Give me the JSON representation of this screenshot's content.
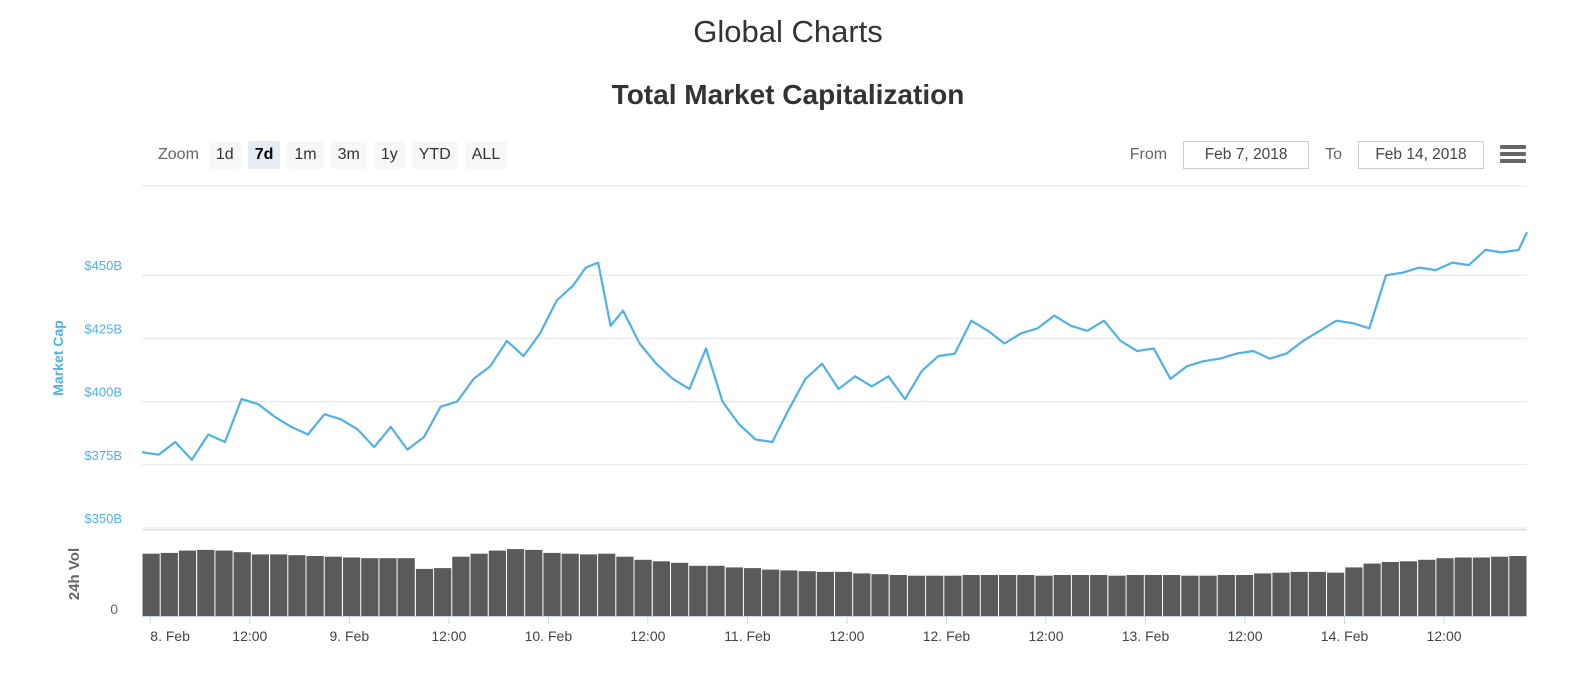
{
  "page": {
    "title": "Global Charts",
    "chart_title": "Total Market Capitalization"
  },
  "zoom": {
    "label": "Zoom",
    "options": [
      "1d",
      "7d",
      "1m",
      "3m",
      "1y",
      "YTD",
      "ALL"
    ],
    "selected": "7d"
  },
  "range": {
    "from_label": "From",
    "from_value": "Feb 7, 2018",
    "to_label": "To",
    "to_value": "Feb 14, 2018"
  },
  "menu_icon": "hamburger-menu-icon",
  "colors": {
    "market_cap_line": "#4fb1e6",
    "volume_bars": "#5a5a5a",
    "axis_label": "#4fb1e6",
    "volume_label": "#666666"
  },
  "chart_data": {
    "type": "line",
    "market_cap": {
      "ylabel": "Market Cap",
      "ylim": [
        350,
        475
      ],
      "yticks": [
        "$350B",
        "$375B",
        "$400B",
        "$425B",
        "$450B"
      ],
      "ytick_values": [
        350,
        375,
        400,
        425,
        450
      ],
      "x_start": "2018-02-07T23:00",
      "x_end": "2018-02-14T22:00",
      "x": [
        "2018-02-07T23:00",
        "2018-02-08T01:00",
        "2018-02-08T03:00",
        "2018-02-08T05:00",
        "2018-02-08T07:00",
        "2018-02-08T09:00",
        "2018-02-08T11:00",
        "2018-02-08T13:00",
        "2018-02-08T15:00",
        "2018-02-08T17:00",
        "2018-02-08T19:00",
        "2018-02-08T21:00",
        "2018-02-08T23:00",
        "2018-02-09T01:00",
        "2018-02-09T03:00",
        "2018-02-09T05:00",
        "2018-02-09T07:00",
        "2018-02-09T09:00",
        "2018-02-09T11:00",
        "2018-02-09T13:00",
        "2018-02-09T15:00",
        "2018-02-09T17:00",
        "2018-02-09T19:00",
        "2018-02-09T21:00",
        "2018-02-09T23:00",
        "2018-02-10T01:00",
        "2018-02-10T03:00",
        "2018-02-10T04:30",
        "2018-02-10T06:00",
        "2018-02-10T07:30",
        "2018-02-10T09:00",
        "2018-02-10T11:00",
        "2018-02-10T13:00",
        "2018-02-10T15:00",
        "2018-02-10T17:00",
        "2018-02-10T19:00",
        "2018-02-10T21:00",
        "2018-02-10T23:00",
        "2018-02-11T01:00",
        "2018-02-11T03:00",
        "2018-02-11T05:00",
        "2018-02-11T07:00",
        "2018-02-11T09:00",
        "2018-02-11T11:00",
        "2018-02-11T13:00",
        "2018-02-11T15:00",
        "2018-02-11T17:00",
        "2018-02-11T19:00",
        "2018-02-11T21:00",
        "2018-02-11T23:00",
        "2018-02-12T01:00",
        "2018-02-12T03:00",
        "2018-02-12T05:00",
        "2018-02-12T07:00",
        "2018-02-12T09:00",
        "2018-02-12T11:00",
        "2018-02-12T13:00",
        "2018-02-12T15:00",
        "2018-02-12T17:00",
        "2018-02-12T19:00",
        "2018-02-12T21:00",
        "2018-02-12T23:00",
        "2018-02-13T01:00",
        "2018-02-13T03:00",
        "2018-02-13T05:00",
        "2018-02-13T07:00",
        "2018-02-13T09:00",
        "2018-02-13T11:00",
        "2018-02-13T13:00",
        "2018-02-13T15:00",
        "2018-02-13T17:00",
        "2018-02-13T19:00",
        "2018-02-13T21:00",
        "2018-02-13T23:00",
        "2018-02-14T01:00",
        "2018-02-14T03:00",
        "2018-02-14T05:00",
        "2018-02-14T07:00",
        "2018-02-14T09:00",
        "2018-02-14T11:00",
        "2018-02-14T13:00",
        "2018-02-14T15:00",
        "2018-02-14T17:00",
        "2018-02-14T19:00",
        "2018-02-14T21:00",
        "2018-02-14T22:00"
      ],
      "values": [
        380,
        379,
        384,
        377,
        387,
        384,
        401,
        399,
        394,
        390,
        387,
        395,
        393,
        389,
        382,
        390,
        381,
        386,
        398,
        400,
        409,
        414,
        424,
        418,
        427,
        440,
        446,
        453,
        455,
        430,
        436,
        423,
        415,
        409,
        405,
        421,
        400,
        391,
        385,
        384,
        397,
        409,
        415,
        405,
        410,
        406,
        410,
        401,
        412,
        418,
        419,
        432,
        428,
        423,
        427,
        429,
        434,
        430,
        428,
        432,
        424,
        420,
        421,
        409,
        414,
        416,
        417,
        419,
        420,
        417,
        419,
        424,
        428,
        432,
        431,
        429,
        450,
        451,
        453,
        452,
        455,
        454,
        460,
        459,
        460,
        467
      ]
    },
    "volume": {
      "ylabel": "24h Vol",
      "ytick": "0",
      "values": [
        0.82,
        0.83,
        0.86,
        0.87,
        0.86,
        0.84,
        0.81,
        0.81,
        0.8,
        0.79,
        0.78,
        0.77,
        0.76,
        0.76,
        0.76,
        0.62,
        0.63,
        0.78,
        0.82,
        0.86,
        0.88,
        0.87,
        0.83,
        0.82,
        0.81,
        0.82,
        0.78,
        0.74,
        0.72,
        0.7,
        0.66,
        0.66,
        0.64,
        0.63,
        0.61,
        0.6,
        0.59,
        0.58,
        0.58,
        0.56,
        0.55,
        0.54,
        0.53,
        0.53,
        0.53,
        0.54,
        0.54,
        0.54,
        0.54,
        0.53,
        0.54,
        0.54,
        0.54,
        0.53,
        0.54,
        0.54,
        0.54,
        0.53,
        0.53,
        0.54,
        0.54,
        0.56,
        0.57,
        0.58,
        0.58,
        0.57,
        0.64,
        0.69,
        0.71,
        0.72,
        0.74,
        0.76,
        0.77,
        0.77,
        0.78,
        0.79
      ]
    },
    "xticks": [
      "8. Feb",
      "12:00",
      "9. Feb",
      "12:00",
      "10. Feb",
      "12:00",
      "11. Feb",
      "12:00",
      "12. Feb",
      "12:00",
      "13. Feb",
      "12:00",
      "14. Feb",
      "12:00"
    ],
    "xtick_times": [
      "2018-02-08T00:00",
      "2018-02-08T12:00",
      "2018-02-09T00:00",
      "2018-02-09T12:00",
      "2018-02-10T00:00",
      "2018-02-10T12:00",
      "2018-02-11T00:00",
      "2018-02-11T12:00",
      "2018-02-12T00:00",
      "2018-02-12T12:00",
      "2018-02-13T00:00",
      "2018-02-13T12:00",
      "2018-02-14T00:00",
      "2018-02-14T12:00"
    ],
    "grid": true
  }
}
